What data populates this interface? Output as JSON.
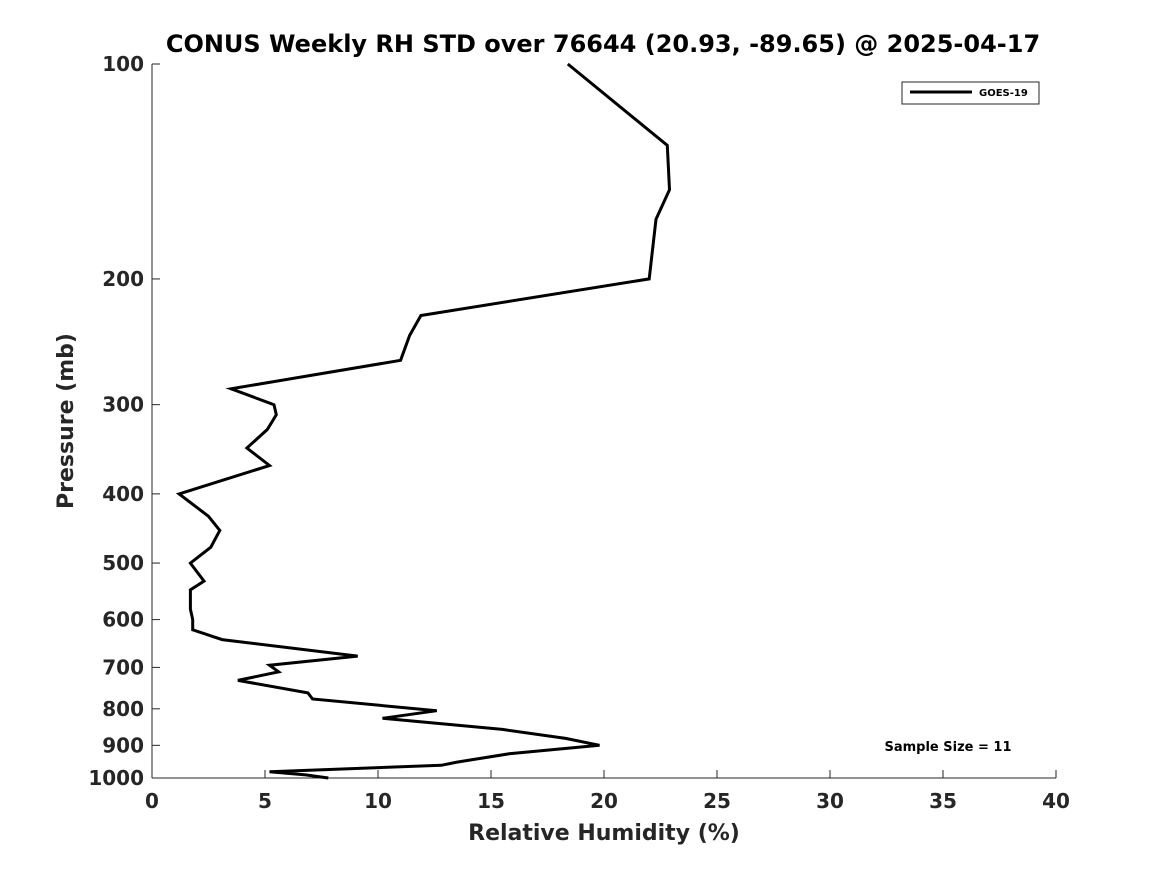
{
  "chart_data": {
    "type": "line",
    "title": "CONUS Weekly RH STD over 76644 (20.93, -89.65) @ 2025-04-17",
    "xlabel": "Relative Humidity (%)",
    "ylabel": "Pressure (mb)",
    "xlim": [
      0,
      40
    ],
    "ylim": [
      100,
      1000
    ],
    "y_scale": "log",
    "y_inverted": true,
    "xticks": [
      0,
      5,
      10,
      15,
      20,
      25,
      30,
      35,
      40
    ],
    "yticks": [
      100,
      200,
      300,
      400,
      500,
      600,
      700,
      800,
      900,
      1000
    ],
    "grid": false,
    "legend": {
      "entries": [
        "GOES-19"
      ],
      "placement": "top-right"
    },
    "annotations": [
      "Sample Size = 11"
    ],
    "series": [
      {
        "name": "GOES-19",
        "color": "#000000",
        "x": [
          18.4,
          22.8,
          22.9,
          22.3,
          22.0,
          11.9,
          11.4,
          11.0,
          3.5,
          5.4,
          5.5,
          5.1,
          4.2,
          5.2,
          1.2,
          2.5,
          3.0,
          2.6,
          1.7,
          2.3,
          1.7,
          1.7,
          1.7,
          1.8,
          1.8,
          3.1,
          9.1,
          5.2,
          5.6,
          3.8,
          6.9,
          7.1,
          12.6,
          10.2,
          15.5,
          18.3,
          19.8,
          15.8,
          13.5,
          12.8,
          5.2,
          6.8,
          7.8
        ],
        "y": [
          100,
          130,
          150,
          165,
          200,
          225,
          240,
          260,
          285,
          300,
          310,
          325,
          345,
          365,
          400,
          430,
          450,
          475,
          500,
          530,
          545,
          565,
          580,
          600,
          620,
          640,
          675,
          695,
          710,
          730,
          760,
          775,
          805,
          825,
          855,
          880,
          900,
          925,
          950,
          960,
          980,
          990,
          1000
        ]
      }
    ]
  }
}
